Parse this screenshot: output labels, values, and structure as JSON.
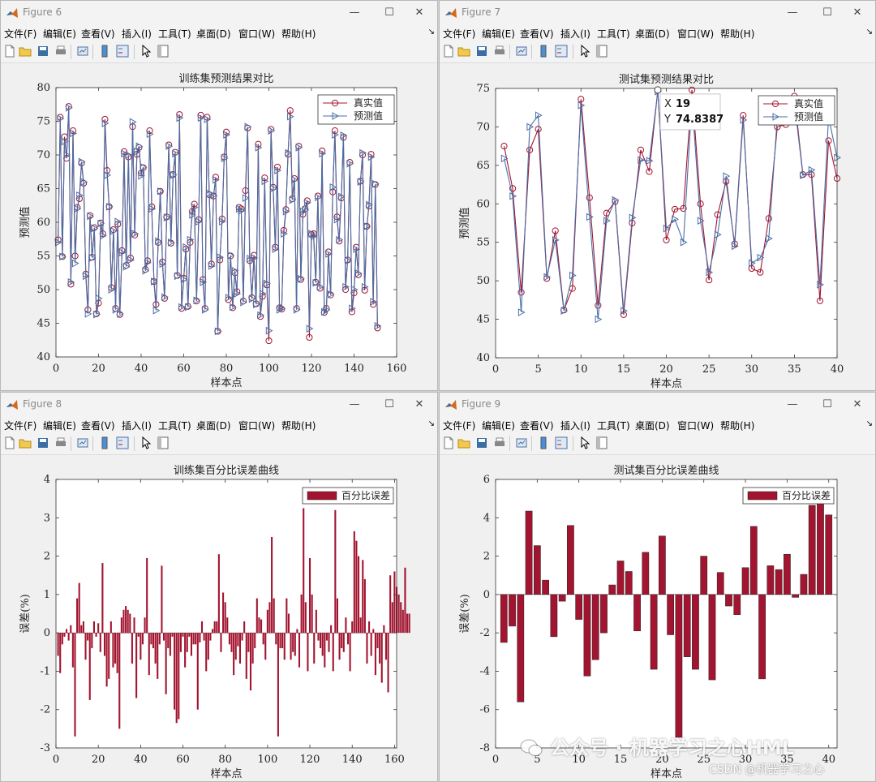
{
  "menu_items": [
    "文件(F)",
    "编辑(E)",
    "查看(V)",
    "插入(I)",
    "工具(T)",
    "桌面(D)",
    "窗口(W)",
    "帮助(H)"
  ],
  "colors": {
    "truth": "#a2142f",
    "pred": "#4a6fa5",
    "bar": "#a2142f"
  },
  "windows": [
    {
      "title": "Figure 6"
    },
    {
      "title": "Figure 7"
    },
    {
      "title": "Figure 8"
    },
    {
      "title": "Figure 9"
    }
  ],
  "datatip": {
    "x_label": "X",
    "x_value": "19",
    "y_label": "Y",
    "y_value": "74.8387"
  },
  "watermark": "公众号 · 机器学习之心HML",
  "credit": "CSDN @机器学习之心",
  "chart_data": [
    {
      "type": "line",
      "title": "训练集预测结果对比",
      "xlabel": "样本点",
      "ylabel": "预测值",
      "xlim": [
        0,
        160
      ],
      "ylim": [
        40,
        80
      ],
      "xticks": [
        0,
        20,
        40,
        60,
        80,
        100,
        120,
        140,
        160
      ],
      "yticks": [
        40,
        45,
        50,
        55,
        60,
        65,
        70,
        75,
        80
      ],
      "legend_position": "top-right",
      "series": [
        {
          "name": "真实值",
          "marker": "circle",
          "values": [
            57.4,
            75.6,
            54.9,
            72.7,
            69.5,
            77.2,
            50.8,
            73.6,
            55.0,
            62.2,
            63.5,
            68.8,
            65.8,
            52.3,
            47.0,
            61.0,
            54.8,
            59.2,
            46.4,
            48.0,
            59.9,
            58.3,
            75.3,
            67.7,
            62.3,
            50.3,
            58.9,
            47.2,
            59.7,
            46.3,
            55.8,
            70.5,
            53.6,
            69.7,
            54.7,
            74.2,
            58.1,
            70.1,
            71.1,
            67.3,
            68.1,
            53.0,
            54.3,
            73.6,
            62.3,
            51.2,
            47.8,
            57.0,
            64.6,
            54.1,
            48.7,
            60.8,
            71.5,
            56.9,
            67.1,
            70.4,
            52.1,
            76.0,
            47.2,
            51.7,
            56.0,
            47.5,
            57.0,
            61.6,
            62.7,
            48.3,
            60.4,
            75.9,
            51.5,
            47.2,
            75.6,
            64.1,
            53.8,
            63.9,
            66.7,
            43.8,
            54.4,
            60.5,
            69.7,
            73.4,
            48.5,
            55.0,
            47.3,
            52.5,
            49.7,
            62.2,
            62.0,
            48.3,
            64.7,
            74.0,
            54.3,
            48.8,
            55.1,
            47.9,
            71.6,
            46.0,
            49.0,
            66.6,
            50.7,
            42.4,
            73.8,
            65.2,
            56.3,
            68.2,
            47.3,
            47.1,
            58.8,
            61.9,
            70.1,
            76.6,
            63.5,
            66.5,
            47.2,
            71.3,
            51.5,
            61.2,
            62.0,
            63.2,
            42.9,
            58.2,
            58.3,
            51.1,
            63.9,
            50.2,
            70.6,
            46.6,
            47.2,
            55.6,
            49.2,
            64.5,
            73.6,
            60.8,
            57.2,
            63.6,
            72.6,
            50.0,
            54.4,
            68.9,
            46.7,
            49.5,
            56.3,
            52.2,
            66.1,
            70.0,
            49.9,
            59.4,
            62.4,
            70.1,
            47.8,
            65.6,
            44.3
          ]
        },
        {
          "name": "预测值",
          "marker": "triangle-right",
          "values": [
            57.0,
            75.4,
            54.9,
            72.0,
            70.0,
            77.0,
            51.1,
            73.2,
            53.9,
            62.0,
            64.0,
            69.0,
            66.0,
            52.0,
            46.4,
            60.9,
            54.7,
            59.1,
            46.3,
            48.7,
            59.8,
            58.0,
            74.7,
            67.0,
            62.3,
            50.0,
            58.7,
            47.0,
            60.1,
            46.4,
            55.5,
            70.2,
            53.4,
            70.0,
            54.4,
            74.9,
            58.3,
            70.5,
            71.3,
            66.9,
            68.2,
            52.8,
            54.0,
            73.1,
            62.0,
            51.2,
            46.9,
            57.2,
            64.6,
            53.8,
            48.9,
            60.7,
            71.3,
            57.0,
            67.0,
            70.2,
            52.0,
            75.5,
            47.4,
            51.5,
            56.3,
            47.4,
            57.4,
            61.1,
            62.2,
            48.4,
            60.1,
            75.5,
            51.1,
            47.0,
            75.3,
            64.3,
            53.5,
            64.0,
            66.3,
            43.8,
            54.8,
            60.1,
            69.5,
            73.0,
            48.8,
            55.1,
            47.4,
            52.8,
            49.4,
            62.0,
            61.7,
            48.1,
            63.6,
            74.2,
            54.6,
            48.6,
            54.7,
            47.8,
            71.1,
            46.2,
            49.4,
            66.1,
            50.9,
            43.9,
            73.6,
            65.0,
            56.0,
            67.7,
            47.0,
            47.2,
            58.3,
            61.6,
            70.3,
            75.7,
            63.3,
            66.3,
            47.0,
            71.1,
            51.6,
            61.6,
            61.8,
            62.9,
            44.2,
            58.3,
            57.9,
            51.0,
            63.7,
            50.4,
            70.2,
            46.7,
            47.0,
            55.3,
            49.3,
            65.2,
            73.0,
            60.4,
            57.4,
            63.8,
            72.9,
            50.4,
            54.3,
            68.7,
            47.2,
            50.0,
            56.0,
            52.4,
            66.0,
            70.3,
            50.4,
            59.4,
            62.6,
            69.7,
            48.2,
            65.7,
            44.6
          ]
        }
      ]
    },
    {
      "type": "line",
      "title": "测试集预测结果对比",
      "xlabel": "样本点",
      "ylabel": "预测值",
      "xlim": [
        0,
        40
      ],
      "ylim": [
        40,
        75
      ],
      "xticks": [
        0,
        5,
        10,
        15,
        20,
        25,
        30,
        35,
        40
      ],
      "yticks": [
        40,
        45,
        50,
        55,
        60,
        65,
        70,
        75
      ],
      "legend_position": "top-right",
      "series": [
        {
          "name": "真实值",
          "marker": "circle",
          "values": [
            67.5,
            62.0,
            48.5,
            67.0,
            69.7,
            50.3,
            56.5,
            46.2,
            49.0,
            73.6,
            60.8,
            46.8,
            58.8,
            60.3,
            45.6,
            57.5,
            67.0,
            64.2,
            74.8,
            55.3,
            59.3,
            59.4,
            74.8,
            60.0,
            50.1,
            58.6,
            62.9,
            54.8,
            71.5,
            51.6,
            51.1,
            58.1,
            70.0,
            70.3,
            74.0,
            63.8,
            63.8,
            47.4,
            68.2,
            63.3
          ]
        },
        {
          "name": "预测值",
          "marker": "triangle-right",
          "values": [
            65.9,
            61.0,
            45.9,
            70.0,
            71.5,
            50.5,
            55.3,
            46.1,
            50.7,
            72.8,
            58.3,
            45.0,
            57.8,
            60.5,
            46.1,
            58.2,
            65.7,
            65.6,
            74.6,
            56.8,
            58.0,
            55.0,
            73.4,
            57.8,
            51.1,
            56.0,
            63.6,
            54.5,
            70.9,
            52.3,
            53.0,
            55.5,
            71.2,
            71.0,
            73.2,
            63.7,
            64.4,
            49.5,
            71.3,
            66.0
          ]
        }
      ]
    },
    {
      "type": "bar",
      "title": "训练集百分比误差曲线",
      "xlabel": "样本点",
      "ylabel": "误差(%)",
      "xlim": [
        0,
        161
      ],
      "ylim": [
        -3,
        4
      ],
      "xticks": [
        0,
        20,
        40,
        60,
        80,
        100,
        120,
        140,
        160
      ],
      "yticks": [
        -3,
        -2,
        -1,
        0,
        1,
        2,
        3,
        4
      ],
      "legend_position": "top-right",
      "series": [
        {
          "name": "百分比误差",
          "values": [
            -0.6,
            -1.05,
            -0.3,
            -0.1,
            0.1,
            -0.2,
            0.2,
            -0.9,
            -2.7,
            0.9,
            1.3,
            0.2,
            0.3,
            -0.7,
            -0.2,
            -1.75,
            -0.4,
            0.3,
            -0.1,
            0.25,
            -0.5,
            1.82,
            -0.6,
            -1.4,
            -1.2,
            0.3,
            -0.9,
            -0.8,
            -1.05,
            -2.5,
            0.4,
            0.6,
            0.7,
            0.6,
            0.5,
            -0.8,
            0.4,
            -1.7,
            -0.1,
            -0.7,
            -0.3,
            0.4,
            1.95,
            -1.1,
            -0.3,
            -0.4,
            -0.8,
            -1.2,
            -0.3,
            1.75,
            -0.2,
            -1.6,
            -0.4,
            -0.6,
            -0.1,
            -2.0,
            -2.35,
            -2.25,
            -0.5,
            -0.1,
            -0.9,
            -0.5,
            -0.1,
            -0.6,
            -0.3,
            -0.3,
            -2.0,
            -0.25,
            0.3,
            -0.2,
            -1.0,
            -0.7,
            -0.2,
            0.1,
            0.3,
            0.3,
            2.05,
            -0.5,
            1.05,
            0.8,
            0.4,
            -0.3,
            -0.5,
            -1.1,
            -0.7,
            -0.35,
            -0.8,
            -0.2,
            0.3,
            -1.2,
            -0.5,
            -1.5,
            -0.8,
            -0.4,
            0.9,
            0.4,
            0.35,
            -0.3,
            -0.7,
            0.6,
            0.8,
            2.5,
            0.9,
            -0.3,
            -2.7,
            -0.4,
            -0.4,
            -0.7,
            0.9,
            0.5,
            -0.7,
            -0.5,
            -0.6,
            0.1,
            -0.9,
            1.0,
            3.25,
            0.8,
            -1.0,
            1.95,
            1.0,
            -0.8,
            0.6,
            -0.2,
            -0.4,
            -0.6,
            -0.9,
            -0.2,
            -0.5,
            0.2,
            -1.0,
            3.2,
            0.9,
            -0.7,
            -0.4,
            -0.5,
            0.4,
            -0.3,
            -1.0,
            0.3,
            2.65,
            2.4,
            2.0,
            0.4,
            1.9,
            1.4,
            -0.8,
            0.3,
            -0.6,
            0.1,
            -1.1,
            -0.4,
            -0.8,
            -1.3,
            0.2,
            -0.7,
            -1.55,
            1.5,
            0.8,
            1.6,
            1.2,
            1.0,
            0.8,
            0.6,
            1.7,
            0.5,
            0.5
          ]
        }
      ]
    },
    {
      "type": "bar",
      "title": "测试集百分比误差曲线",
      "xlabel": "样本点",
      "ylabel": "误差(%)",
      "xlim": [
        0,
        41
      ],
      "ylim": [
        -8,
        6
      ],
      "xticks": [
        0,
        5,
        10,
        15,
        20,
        25,
        30,
        35,
        40
      ],
      "yticks": [
        -8,
        -6,
        -4,
        -2,
        0,
        2,
        4,
        6
      ],
      "legend_position": "top-right",
      "series": [
        {
          "name": "百分比误差",
          "values": [
            -2.5,
            -1.65,
            -5.6,
            4.35,
            2.55,
            0.75,
            -2.2,
            -0.35,
            3.6,
            -1.3,
            -4.25,
            -3.4,
            -2.0,
            0.5,
            1.75,
            1.2,
            -1.9,
            2.2,
            -3.9,
            3.05,
            -2.1,
            -7.45,
            -3.25,
            -3.9,
            2.0,
            -4.45,
            1.15,
            -0.6,
            -1.05,
            1.4,
            3.55,
            -4.4,
            1.5,
            1.3,
            2.1,
            -0.15,
            1.05,
            4.65,
            4.95,
            4.15
          ]
        }
      ]
    }
  ]
}
